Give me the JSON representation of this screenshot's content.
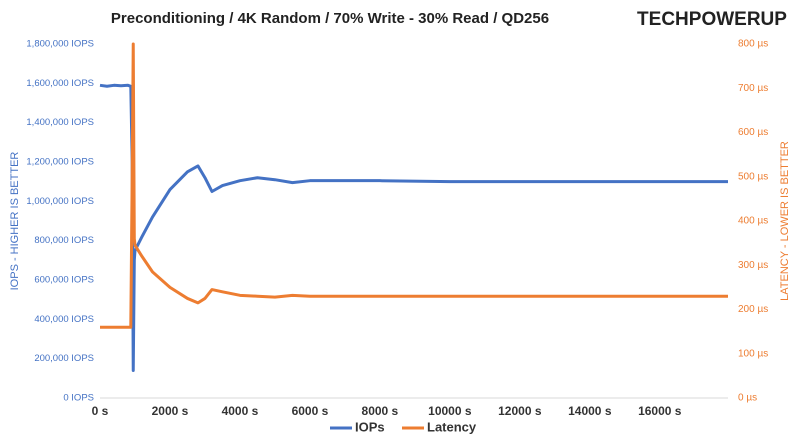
{
  "chart_data": {
    "type": "line",
    "title": "Preconditioning / 4K Random / 70% Write - 30% Read / QD256",
    "logo": "TECHPOWERUP",
    "ylabel": "IOPS - HIGHER IS BETTER",
    "y2label": "LATENCY - LOWER IS BETTER",
    "x": [
      0,
      200,
      400,
      600,
      800,
      880,
      920,
      950,
      980,
      1000,
      1200,
      1500,
      2000,
      2500,
      2800,
      3000,
      3200,
      3500,
      4000,
      4500,
      5000,
      5500,
      6000,
      8000,
      10000,
      12000,
      14000,
      16000,
      17950
    ],
    "series": [
      {
        "name": "IOPs",
        "color": "#4472c4",
        "values": [
          1590000,
          1585000,
          1590000,
          1588000,
          1590000,
          1585000,
          1200000,
          140000,
          700000,
          750000,
          820000,
          920000,
          1060000,
          1150000,
          1180000,
          1120000,
          1050000,
          1080000,
          1105000,
          1120000,
          1110000,
          1095000,
          1105000,
          1105000,
          1100000,
          1100000,
          1100000,
          1100000,
          1100000
        ]
      },
      {
        "name": "Latency",
        "color": "#ed7d31",
        "axis": "y2",
        "values": [
          160,
          160,
          160,
          160,
          160,
          160,
          500,
          800,
          360,
          345,
          320,
          285,
          250,
          225,
          215,
          225,
          245,
          240,
          232,
          230,
          228,
          232,
          230,
          230,
          230,
          230,
          230,
          230,
          230
        ]
      }
    ],
    "xlim": [
      0,
      17950
    ],
    "xticks": [
      {
        "value": 0,
        "label": "0 s"
      },
      {
        "value": 2000,
        "label": "2000 s"
      },
      {
        "value": 4000,
        "label": "4000 s"
      },
      {
        "value": 6000,
        "label": "6000 s"
      },
      {
        "value": 8000,
        "label": "8000 s"
      },
      {
        "value": 10000,
        "label": "10000 s"
      },
      {
        "value": 12000,
        "label": "12000 s"
      },
      {
        "value": 14000,
        "label": "14000 s"
      },
      {
        "value": 16000,
        "label": "16000 s"
      }
    ],
    "ylim": [
      0,
      1800000
    ],
    "yticks": [
      {
        "value": 0,
        "label": "0 IOPS"
      },
      {
        "value": 200000,
        "label": "200,000 IOPS"
      },
      {
        "value": 400000,
        "label": "400,000 IOPS"
      },
      {
        "value": 600000,
        "label": "600,000 IOPS"
      },
      {
        "value": 800000,
        "label": "800,000 IOPS"
      },
      {
        "value": 1000000,
        "label": "1,000,000 IOPS"
      },
      {
        "value": 1200000,
        "label": "1,200,000 IOPS"
      },
      {
        "value": 1400000,
        "label": "1,400,000 IOPS"
      },
      {
        "value": 1600000,
        "label": "1,600,000 IOPS"
      },
      {
        "value": 1800000,
        "label": "1,800,000 IOPS"
      }
    ],
    "y2lim": [
      0,
      800
    ],
    "y2ticks": [
      {
        "value": 0,
        "label": "0 µs"
      },
      {
        "value": 100,
        "label": "100 µs"
      },
      {
        "value": 200,
        "label": "200 µs"
      },
      {
        "value": 300,
        "label": "300 µs"
      },
      {
        "value": 400,
        "label": "400 µs"
      },
      {
        "value": 500,
        "label": "500 µs"
      },
      {
        "value": 600,
        "label": "600 µs"
      },
      {
        "value": 700,
        "label": "700 µs"
      },
      {
        "value": 800,
        "label": "800 µs"
      }
    ]
  }
}
